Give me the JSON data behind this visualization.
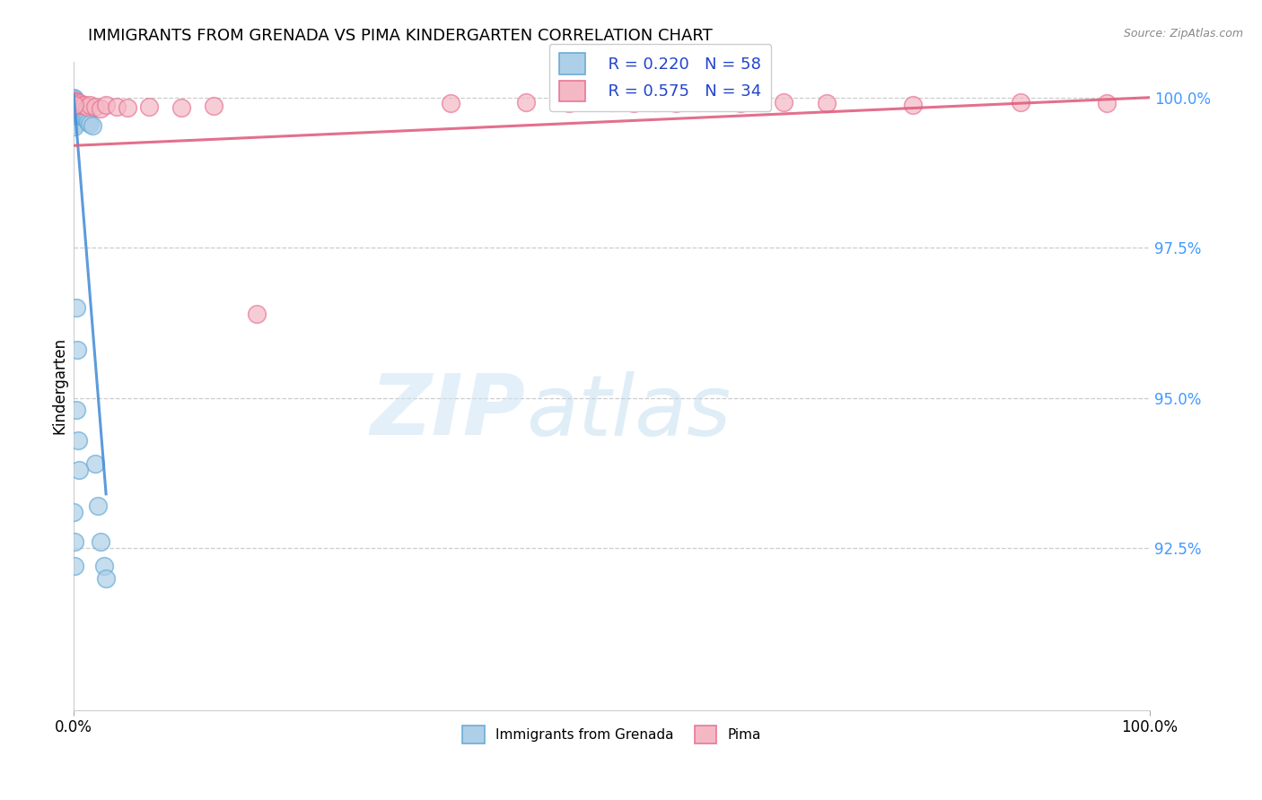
{
  "title": "IMMIGRANTS FROM GRENADA VS PIMA KINDERGARTEN CORRELATION CHART",
  "source": "Source: ZipAtlas.com",
  "ylabel": "Kindergarten",
  "legend_blue_R": "R = 0.220",
  "legend_blue_N": "N = 58",
  "legend_pink_R": "R = 0.575",
  "legend_pink_N": "N = 34",
  "legend_label_blue": "Immigrants from Grenada",
  "legend_label_pink": "Pima",
  "blue_fill": "#AECFE8",
  "pink_fill": "#F4B8C4",
  "blue_edge": "#6BADD6",
  "pink_edge": "#E87898",
  "blue_line": "#4A90D9",
  "pink_line": "#E06080",
  "tick_color": "#4499FF",
  "xlim": [
    0.0,
    1.0
  ],
  "ylim": [
    0.898,
    1.006
  ],
  "ytick_vals": [
    0.925,
    0.95,
    0.975,
    1.0
  ],
  "ytick_labels": [
    "92.5%",
    "95.0%",
    "97.5%",
    "100.0%"
  ],
  "xtick_vals": [
    0.0,
    1.0
  ],
  "xtick_labels": [
    "0.0%",
    "100.0%"
  ],
  "blue_x": [
    0.0,
    0.0,
    0.0,
    0.0,
    0.0,
    0.0,
    0.0,
    0.0,
    0.001,
    0.001,
    0.001,
    0.001,
    0.001,
    0.001,
    0.001,
    0.001,
    0.001,
    0.001,
    0.002,
    0.002,
    0.002,
    0.002,
    0.002,
    0.002,
    0.003,
    0.003,
    0.003,
    0.003,
    0.004,
    0.004,
    0.004,
    0.005,
    0.005,
    0.006,
    0.006,
    0.007,
    0.007,
    0.008,
    0.009,
    0.01,
    0.011,
    0.012,
    0.013,
    0.015,
    0.017,
    0.02,
    0.022,
    0.025,
    0.028,
    0.03,
    0.002,
    0.003,
    0.002,
    0.004,
    0.005,
    0.0,
    0.001,
    0.001
  ],
  "blue_y": [
    1.0,
    0.9995,
    0.999,
    0.9985,
    0.998,
    0.9975,
    0.997,
    0.9965,
    0.9998,
    0.9992,
    0.9987,
    0.9982,
    0.9977,
    0.9972,
    0.9967,
    0.9962,
    0.9957,
    0.9952,
    0.9994,
    0.9989,
    0.9984,
    0.9979,
    0.9974,
    0.9969,
    0.9988,
    0.9983,
    0.9978,
    0.9973,
    0.9982,
    0.9977,
    0.9972,
    0.998,
    0.9975,
    0.9977,
    0.9972,
    0.9975,
    0.997,
    0.9972,
    0.997,
    0.9968,
    0.9965,
    0.9963,
    0.996,
    0.9957,
    0.9954,
    0.939,
    0.932,
    0.926,
    0.922,
    0.92,
    0.965,
    0.958,
    0.948,
    0.943,
    0.938,
    0.931,
    0.926,
    0.922
  ],
  "pink_x": [
    0.0,
    0.001,
    0.002,
    0.003,
    0.004,
    0.006,
    0.008,
    0.01,
    0.012,
    0.015,
    0.02,
    0.025,
    0.03,
    0.04,
    0.05,
    0.07,
    0.1,
    0.13,
    0.17,
    0.001,
    0.35,
    0.42,
    0.46,
    0.5,
    0.52,
    0.54,
    0.56,
    0.58,
    0.62,
    0.66,
    0.7,
    0.78,
    0.88,
    0.96
  ],
  "pink_y": [
    0.9995,
    0.9993,
    0.999,
    0.9992,
    0.9988,
    0.999,
    0.9988,
    0.9987,
    0.9985,
    0.9988,
    0.9985,
    0.9982,
    0.9987,
    0.9985,
    0.9983,
    0.9985,
    0.9983,
    0.9986,
    0.964,
    0.9988,
    0.999,
    0.9992,
    0.999,
    0.9992,
    0.999,
    0.9992,
    0.999,
    0.9992,
    0.999,
    0.9992,
    0.999,
    0.9988,
    0.9992,
    0.999
  ],
  "blue_line_x": [
    0.0,
    0.03
  ],
  "blue_line_y": [
    1.0005,
    0.934
  ],
  "pink_line_x": [
    0.0,
    1.0
  ],
  "pink_line_y": [
    0.992,
    1.0
  ]
}
